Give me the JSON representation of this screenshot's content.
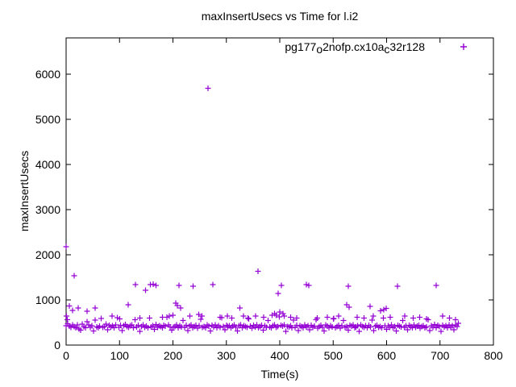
{
  "title": "maxInsertUsecs vs Time for l.i2",
  "x_axis_label": "Time(s)",
  "y_axis_label": "maxInsertUsecs",
  "colors": {
    "series": "#9400d3",
    "axis": "#000000",
    "background": "#ffffff",
    "text": "#000000"
  },
  "legend": {
    "plain_label": "pg177_o2nofp.cx10a_c32r128",
    "display_parts": [
      {
        "t": "pg177"
      },
      {
        "s": "o"
      },
      {
        "t": "2nofp.cx10a"
      },
      {
        "s": "c"
      },
      {
        "t": "32r128"
      }
    ],
    "marker": "plus-icon",
    "position": "top-right-inside"
  },
  "chart_data": {
    "type": "scatter",
    "title": "maxInsertUsecs vs Time for l.i2",
    "xlabel": "Time(s)",
    "ylabel": "maxInsertUsecs",
    "series_name": "pg177_o2nofp.cx10a_c32r128",
    "marker": "plus",
    "marker_color": "#9400d3",
    "grid": false,
    "xlim": [
      0,
      800
    ],
    "ylim": [
      0,
      6800
    ],
    "x_ticks": [
      0,
      100,
      200,
      300,
      400,
      500,
      600,
      700,
      800
    ],
    "y_ticks": [
      0,
      1000,
      2000,
      3000,
      4000,
      5000,
      6000
    ],
    "max_point": [
      266,
      5690
    ],
    "band": {
      "t0": 0,
      "dt": 3,
      "values": [
        430,
        470,
        420,
        390,
        450,
        410,
        380,
        445,
        355,
        330,
        460,
        415,
        385,
        520,
        445,
        395,
        430,
        310,
        555,
        405,
        380,
        420,
        590,
        390,
        415,
        460,
        340,
        435,
        400,
        425,
        385,
        450,
        610,
        395,
        440,
        320,
        430,
        455,
        415,
        390,
        425,
        445,
        380,
        560,
        400,
        435,
        305,
        415,
        450,
        395,
        420,
        380,
        595,
        405,
        430,
        345,
        455,
        390,
        425,
        410,
        385,
        440,
        420,
        615,
        450,
        400,
        330,
        395,
        415,
        445,
        380,
        425,
        405,
        545,
        390,
        435,
        320,
        420,
        450,
        385,
        410,
        440,
        375,
        430,
        570,
        395,
        415,
        385,
        445,
        420,
        310,
        435,
        405,
        450,
        380,
        425,
        390,
        605,
        410,
        340,
        440,
        415,
        430,
        385,
        420,
        450,
        395,
        315,
        425,
        445,
        380,
        430,
        410,
        390,
        580,
        420,
        375,
        435,
        400,
        450,
        385,
        415,
        440,
        330,
        425,
        395,
        545,
        405,
        380,
        430,
        445,
        390,
        415,
        625,
        435,
        420,
        450,
        305,
        410,
        400,
        425,
        380,
        555,
        395,
        440,
        320,
        430,
        415,
        385,
        450,
        405,
        425,
        340,
        440,
        390,
        420,
        565,
        375,
        410,
        435,
        395,
        315,
        445,
        420,
        380,
        430,
        400,
        590,
        385,
        415,
        440,
        375,
        425,
        545,
        390,
        410,
        330,
        435,
        420,
        445,
        385,
        400,
        430,
        305,
        450,
        415,
        390,
        425,
        380,
        440,
        405,
        555,
        320,
        420,
        435,
        390,
        410,
        380,
        595,
        425,
        345,
        430,
        395,
        450,
        385,
        415,
        310,
        440,
        420,
        400,
        545,
        390,
        425,
        335,
        435,
        410,
        380,
        450,
        395,
        420,
        440,
        375,
        415,
        430,
        385,
        405,
        565,
        320,
        425,
        390,
        455,
        380,
        435,
        415,
        300,
        440,
        400,
        425,
        385,
        450,
        390,
        430,
        340,
        445,
        410
      ]
    },
    "outliers": [
      [
        0,
        2180
      ],
      [
        1,
        640
      ],
      [
        2,
        560
      ],
      [
        6,
        870
      ],
      [
        12,
        770
      ],
      [
        15,
        1540
      ],
      [
        23,
        820
      ],
      [
        39,
        750
      ],
      [
        54,
        820
      ],
      [
        86,
        640
      ],
      [
        100,
        580
      ],
      [
        116,
        890
      ],
      [
        130,
        1340
      ],
      [
        138,
        600
      ],
      [
        149,
        1210
      ],
      [
        158,
        1340
      ],
      [
        163,
        1350
      ],
      [
        168,
        1320
      ],
      [
        180,
        620
      ],
      [
        193,
        640
      ],
      [
        200,
        660
      ],
      [
        205,
        930
      ],
      [
        208,
        875
      ],
      [
        211,
        1320
      ],
      [
        214,
        820
      ],
      [
        232,
        640
      ],
      [
        238,
        1300
      ],
      [
        248,
        680
      ],
      [
        254,
        640
      ],
      [
        266,
        5690
      ],
      [
        275,
        1340
      ],
      [
        288,
        620
      ],
      [
        302,
        645
      ],
      [
        310,
        600
      ],
      [
        325,
        820
      ],
      [
        332,
        645
      ],
      [
        340,
        600
      ],
      [
        355,
        640
      ],
      [
        359,
        1630
      ],
      [
        370,
        620
      ],
      [
        386,
        660
      ],
      [
        390,
        700
      ],
      [
        393,
        660
      ],
      [
        397,
        1140
      ],
      [
        400,
        730
      ],
      [
        403,
        1320
      ],
      [
        406,
        700
      ],
      [
        408,
        640
      ],
      [
        420,
        620
      ],
      [
        432,
        600
      ],
      [
        450,
        1340
      ],
      [
        454,
        1320
      ],
      [
        470,
        600
      ],
      [
        489,
        620
      ],
      [
        500,
        580
      ],
      [
        510,
        640
      ],
      [
        525,
        890
      ],
      [
        528,
        1300
      ],
      [
        530,
        840
      ],
      [
        545,
        620
      ],
      [
        558,
        600
      ],
      [
        569,
        860
      ],
      [
        575,
        640
      ],
      [
        589,
        760
      ],
      [
        595,
        790
      ],
      [
        599,
        810
      ],
      [
        607,
        620
      ],
      [
        620,
        1300
      ],
      [
        634,
        640
      ],
      [
        650,
        600
      ],
      [
        662,
        620
      ],
      [
        675,
        580
      ],
      [
        693,
        1320
      ],
      [
        705,
        640
      ],
      [
        718,
        600
      ],
      [
        729,
        560
      ],
      [
        734,
        480
      ]
    ]
  }
}
